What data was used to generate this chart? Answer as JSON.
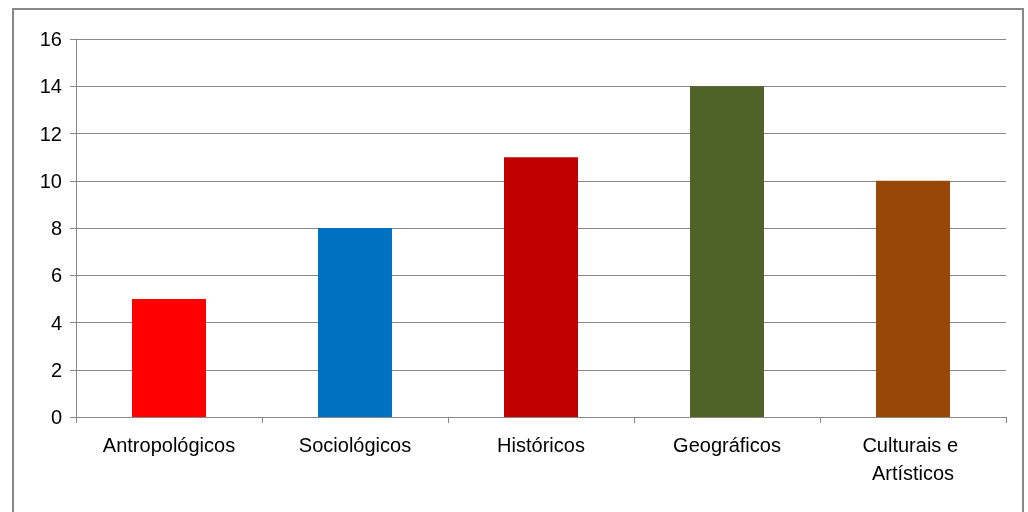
{
  "chart_data": {
    "type": "bar",
    "categories": [
      "Antropológicos",
      "Sociológicos",
      "Históricos",
      "Geográficos",
      "Culturais e Artísticos"
    ],
    "values": [
      5,
      8,
      11,
      14,
      10
    ],
    "colors": [
      "#ff0000",
      "#0070c0",
      "#c00000",
      "#4f6228",
      "#974706"
    ],
    "ylim": [
      0,
      16
    ],
    "yticks": [
      0,
      2,
      4,
      6,
      8,
      10,
      12,
      14,
      16
    ],
    "grid": "y"
  }
}
